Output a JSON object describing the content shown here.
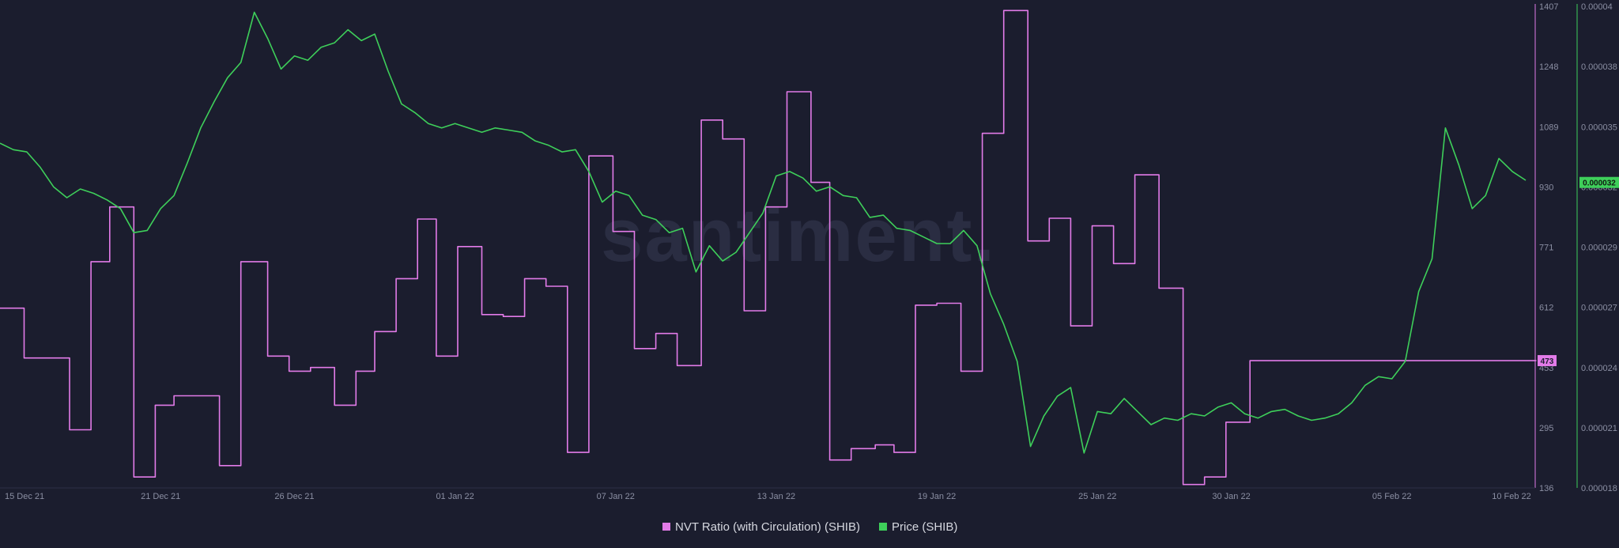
{
  "watermark": "santiment.",
  "chart_data": {
    "type": "line",
    "legend_position": "bottom-center",
    "grid": false,
    "x_ticks": [
      "15 Dec 21",
      "21 Dec 21",
      "26 Dec 21",
      "01 Jan 22",
      "07 Jan 22",
      "13 Jan 22",
      "19 Jan 22",
      "25 Jan 22",
      "30 Jan 22",
      "05 Feb 22",
      "10 Feb 22"
    ],
    "xlim": [
      "2021-12-15",
      "2022-02-10"
    ],
    "series": [
      {
        "name": "NVT Ratio (with Circulation) (SHIB)",
        "axis": "left-inner",
        "color": "#e27be8",
        "step": true,
        "ylim": [
          136,
          1407
        ],
        "y_ticks": [
          "1407",
          "1248",
          "1089",
          "930",
          "771",
          "612",
          "453",
          "295",
          "136"
        ],
        "current_value": "473",
        "x": [
          0,
          0.9,
          2.6,
          3.4,
          4.1,
          5.0,
          5.8,
          6.5,
          7.4,
          8.2,
          9.0,
          10.0,
          10.8,
          11.6,
          12.5,
          13.3,
          14.0,
          14.8,
          15.6,
          16.3,
          17.1,
          18.0,
          18.8,
          19.6,
          20.4,
          21.2,
          22.0,
          22.9,
          23.7,
          24.5,
          25.3,
          26.2,
          27.0,
          27.8,
          28.6,
          29.4,
          30.3,
          31.0,
          31.8,
          32.7,
          33.4,
          34.2,
          35.0,
          35.9,
          36.7,
          37.5,
          38.4,
          39.2,
          40.0,
          40.8,
          41.6,
          42.4,
          43.3,
          44.2,
          45.0,
          45.8,
          46.7,
          47.6,
          48.4,
          49.2,
          50.0,
          50.8,
          51.6,
          52.4,
          53.2,
          54.1,
          55.0,
          55.9,
          56.6,
          57.2
        ],
        "values": [
          612,
          480,
          290,
          735,
          880,
          165,
          355,
          380,
          380,
          195,
          735,
          485,
          445,
          455,
          355,
          445,
          550,
          690,
          848,
          485,
          775,
          595,
          590,
          690,
          670,
          230,
          1015,
          815,
          505,
          545,
          460,
          1110,
          1060,
          605,
          880,
          1185,
          945,
          210,
          240,
          250,
          230,
          620,
          625,
          445,
          1075,
          1400,
          790,
          850,
          565,
          830,
          730,
          965,
          665,
          145,
          165,
          310,
          473,
          473,
          473,
          473,
          473,
          473,
          473,
          473,
          473,
          473,
          473,
          473,
          473,
          473
        ]
      },
      {
        "name": "Price (SHIB)",
        "axis": "right",
        "color": "#3ecf5a",
        "step": false,
        "ylim": [
          1.8e-05,
          4e-05
        ],
        "y_ticks": [
          "0.00004",
          "0.000038",
          "0.000035",
          "0.000032",
          "0.000029",
          "0.000027",
          "0.000024",
          "0.000021",
          "0.000018"
        ],
        "current_value": "0.000032",
        "x": [
          0,
          0.5,
          1.0,
          1.5,
          2.0,
          2.5,
          3.0,
          3.5,
          4.0,
          4.5,
          5.0,
          5.5,
          6.0,
          6.5,
          7.0,
          7.5,
          8.0,
          8.5,
          9.0,
          9.5,
          10.0,
          10.5,
          11.0,
          11.5,
          12.0,
          12.5,
          13.0,
          13.5,
          14.0,
          14.5,
          15.0,
          15.5,
          16.0,
          16.5,
          17.0,
          17.5,
          18.0,
          18.5,
          19.0,
          19.5,
          20.0,
          20.5,
          21.0,
          21.5,
          22.0,
          22.5,
          23.0,
          23.5,
          24.0,
          24.5,
          25.0,
          25.5,
          26.0,
          26.5,
          27.0,
          27.5,
          28.0,
          28.5,
          29.0,
          29.5,
          30.0,
          30.5,
          31.0,
          31.5,
          32.0,
          32.5,
          33.0,
          33.5,
          34.0,
          34.5,
          35.0,
          35.5,
          36.0,
          36.5,
          37.0,
          37.5,
          38.0,
          38.5,
          39.0,
          39.5,
          40.0,
          40.5,
          41.0,
          41.5,
          42.0,
          42.5,
          43.0,
          43.5,
          44.0,
          44.5,
          45.0,
          45.5,
          46.0,
          46.5,
          47.0,
          47.5,
          48.0,
          48.5,
          49.0,
          49.5,
          50.0,
          50.5,
          51.0,
          51.5,
          52.0,
          52.5,
          53.0,
          53.5,
          54.0,
          54.5,
          55.0,
          55.5,
          56.0,
          56.5,
          57.0
        ],
        "values": [
          3.38e-05,
          3.35e-05,
          3.34e-05,
          3.27e-05,
          3.18e-05,
          3.13e-05,
          3.17e-05,
          3.15e-05,
          3.12e-05,
          3.08e-05,
          2.97e-05,
          2.98e-05,
          3.08e-05,
          3.14e-05,
          3.29e-05,
          3.45e-05,
          3.57e-05,
          3.68e-05,
          3.75e-05,
          3.98e-05,
          3.86e-05,
          3.72e-05,
          3.78e-05,
          3.76e-05,
          3.82e-05,
          3.84e-05,
          3.9e-05,
          3.85e-05,
          3.88e-05,
          3.71e-05,
          3.56e-05,
          3.52e-05,
          3.47e-05,
          3.45e-05,
          3.47e-05,
          3.45e-05,
          3.43e-05,
          3.45e-05,
          3.44e-05,
          3.43e-05,
          3.39e-05,
          3.37e-05,
          3.34e-05,
          3.35e-05,
          3.25e-05,
          3.11e-05,
          3.16e-05,
          3.14e-05,
          3.05e-05,
          3.03e-05,
          2.97e-05,
          2.99e-05,
          2.79e-05,
          2.91e-05,
          2.84e-05,
          2.88e-05,
          2.97e-05,
          3.06e-05,
          3.23e-05,
          3.25e-05,
          3.22e-05,
          3.16e-05,
          3.18e-05,
          3.14e-05,
          3.13e-05,
          3.04e-05,
          3.05e-05,
          2.99e-05,
          2.98e-05,
          2.95e-05,
          2.92e-05,
          2.92e-05,
          2.98e-05,
          2.91e-05,
          2.69e-05,
          2.55e-05,
          2.38e-05,
          1.99e-05,
          2.13e-05,
          2.22e-05,
          2.26e-05,
          1.96e-05,
          2.15e-05,
          2.14e-05,
          2.21e-05,
          2.15e-05,
          2.09e-05,
          2.12e-05,
          2.11e-05,
          2.14e-05,
          2.13e-05,
          2.17e-05,
          2.19e-05,
          2.14e-05,
          2.12e-05,
          2.15e-05,
          2.16e-05,
          2.13e-05,
          2.11e-05,
          2.12e-05,
          2.14e-05,
          2.19e-05,
          2.27e-05,
          2.31e-05,
          2.3e-05,
          2.38e-05,
          2.7e-05,
          2.85e-05,
          3.45e-05,
          3.28e-05,
          3.08e-05,
          3.14e-05,
          3.31e-05,
          3.25e-05,
          3.21e-05
        ]
      }
    ]
  }
}
